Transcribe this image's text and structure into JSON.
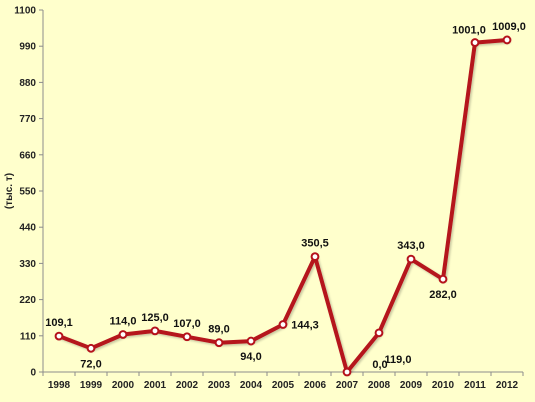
{
  "chart_data": {
    "type": "line",
    "title": "",
    "xlabel": "",
    "ylabel": "(тыс. т)",
    "categories": [
      "1998",
      "1999",
      "2000",
      "2001",
      "2002",
      "2003",
      "2004",
      "2005",
      "2006",
      "2007",
      "2008",
      "2009",
      "2010",
      "2011",
      "2012"
    ],
    "series": [
      {
        "values": [
          109.1,
          72.0,
          114.0,
          125.0,
          107.0,
          89.0,
          94.0,
          144.3,
          350.5,
          0.0,
          119.0,
          343.0,
          282.0,
          1001.0,
          1009.0
        ],
        "labels": [
          "109,1",
          "72,0",
          "114,0",
          "125,0",
          "107,0",
          "89,0",
          "94,0",
          "144,3",
          "350,5",
          "0,0",
          "119,0",
          "343,0",
          "282,0",
          "1001,0",
          "1009,0"
        ]
      }
    ],
    "ylim": [
      0,
      1100
    ],
    "yticks": [
      0,
      110,
      220,
      330,
      440,
      550,
      660,
      770,
      880,
      990,
      1100
    ],
    "ytick_labels": [
      "0",
      "110",
      "220",
      "330",
      "440",
      "550",
      "660",
      "770",
      "880",
      "990",
      "1100"
    ],
    "grid": false,
    "legend": "none",
    "colors": {
      "background": "#ffffcc",
      "line": "#b5121b",
      "marker_fill": "#ffffff",
      "axis": "#8c8c8c"
    }
  }
}
